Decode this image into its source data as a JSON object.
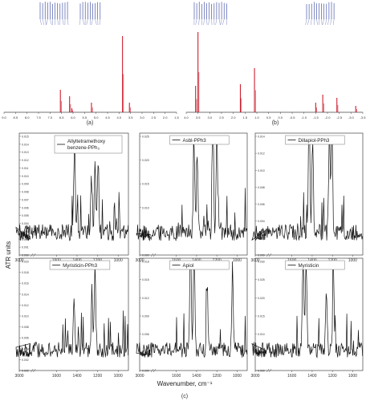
{
  "figure": {
    "panel_labels": [
      "(a)",
      "(b)",
      "(c)"
    ],
    "shared_ylabel": "ATR units",
    "shared_xlabel": "Wavenumber, cm⁻¹",
    "colors": {
      "nmr": "#cc1f2f",
      "ir": "#111111",
      "peak_labels": "#2b3d9c",
      "axis": "#444444"
    }
  },
  "chart_data": [
    {
      "id": "a",
      "type": "line",
      "title": "",
      "ticks": [
        "9.0",
        "8.5",
        "8.0",
        "7.5",
        "7.0",
        "6.5",
        "6.0",
        "5.5",
        "5.0",
        "4.5",
        "4.0",
        "3.5",
        "3.0",
        "2.5",
        "2.0",
        "1.5"
      ],
      "xlim": [
        9.0,
        1.5
      ],
      "ylim": [
        0,
        1.0
      ],
      "peaks": [
        {
          "x": 6.55,
          "y": 0.28
        },
        {
          "x": 6.15,
          "y": 0.2
        },
        {
          "x": 6.05,
          "y": 0.05
        },
        {
          "x": 5.2,
          "y": 0.12
        },
        {
          "x": 3.85,
          "y": 0.95
        },
        {
          "x": 3.55,
          "y": 0.12
        }
      ]
    },
    {
      "id": "b",
      "type": "line",
      "title": "",
      "ticks": [
        "4.0",
        "3.5",
        "3.0",
        "2.5",
        "2.0",
        "1.5",
        "1.0",
        "0.5",
        "0.0",
        "-0.5",
        "-1.0",
        "-1.5",
        "-2.0",
        "-2.5",
        "-3.0",
        "-3.5"
      ],
      "xlim": [
        4.0,
        -3.5
      ],
      "ylim": [
        0,
        1.0
      ],
      "peaks": [
        {
          "x": 3.6,
          "y": 0.33
        },
        {
          "x": 3.5,
          "y": 1.0
        },
        {
          "x": 1.7,
          "y": 0.35
        },
        {
          "x": 1.1,
          "y": 0.55
        },
        {
          "x": -1.5,
          "y": 0.12
        },
        {
          "x": -1.8,
          "y": 0.22
        },
        {
          "x": -2.4,
          "y": 0.18
        },
        {
          "x": -3.2,
          "y": 0.08
        }
      ]
    },
    {
      "id": "c1",
      "type": "line",
      "series": [
        {
          "name": "Allyltetramethoxy benzene-PPh₃"
        }
      ],
      "xticks": [
        "3000",
        "1600",
        "1400",
        "1200",
        "1000"
      ],
      "ylim": [
        0.0,
        0.015
      ],
      "yticks": [
        "0.000",
        "0.001",
        "0.002",
        "0.003",
        "0.004",
        "0.005",
        "0.006",
        "0.007",
        "0.008",
        "0.009",
        "0.010",
        "0.011",
        "0.012",
        "0.013",
        "0.014",
        "0.015"
      ],
      "peaks": [
        {
          "x": 1425,
          "y": 0.0118
        },
        {
          "x": 1260,
          "y": 0.0066
        },
        {
          "x": 1225,
          "y": 0.009
        },
        {
          "x": 1195,
          "y": 0.0095
        }
      ]
    },
    {
      "id": "c2",
      "type": "line",
      "series": [
        {
          "name": "Asbl-PPh3"
        }
      ],
      "xticks": [
        "3000",
        "1600",
        "1400",
        "1200",
        "1000"
      ],
      "ylim": [
        0.0,
        0.025
      ],
      "yticks": [
        "0.000",
        "0.005",
        "0.010",
        "0.015",
        "0.020",
        "0.025"
      ],
      "peaks": [
        {
          "x": 1425,
          "y": 0.0185
        },
        {
          "x": 1395,
          "y": 0.0175
        },
        {
          "x": 1240,
          "y": 0.0235
        },
        {
          "x": 1200,
          "y": 0.022
        }
      ]
    },
    {
      "id": "c3",
      "type": "line",
      "series": [
        {
          "name": "Dillapiol-PPh3"
        }
      ],
      "xticks": [
        "3000",
        "1600",
        "1400",
        "1200",
        "1000"
      ],
      "ylim": [
        0.0,
        0.014
      ],
      "yticks": [
        "0.000",
        "0.002",
        "0.004",
        "0.006",
        "0.008",
        "0.010",
        "0.012",
        "0.014"
      ],
      "peaks": [
        {
          "x": 1430,
          "y": 0.0115
        },
        {
          "x": 1395,
          "y": 0.0113
        },
        {
          "x": 1230,
          "y": 0.0125
        },
        {
          "x": 1205,
          "y": 0.0135
        }
      ]
    },
    {
      "id": "c4",
      "type": "line",
      "series": [
        {
          "name": "Myristicin-PPh3"
        }
      ],
      "xticks": [
        "3000",
        "1600",
        "1400",
        "1200",
        "1000"
      ],
      "ylim": [
        0.0,
        0.02
      ],
      "yticks": [
        "0.000",
        "0.002",
        "0.004",
        "0.006",
        "0.008",
        "0.010",
        "0.012",
        "0.014",
        "0.016",
        "0.018",
        "0.020"
      ],
      "peaks": [
        {
          "x": 1430,
          "y": 0.0105
        },
        {
          "x": 1255,
          "y": 0.011
        },
        {
          "x": 1225,
          "y": 0.0155
        }
      ]
    },
    {
      "id": "c5",
      "type": "line",
      "series": [
        {
          "name": "Apiol"
        }
      ],
      "xticks": [
        "3000",
        "1600",
        "1400",
        "1200",
        "1000"
      ],
      "ylim": [
        0.0,
        0.018
      ],
      "yticks": [
        "0.000",
        "0.003",
        "0.006",
        "0.009",
        "0.012",
        "0.015",
        "0.018"
      ],
      "peaks": [
        {
          "x": 1460,
          "y": 0.0175
        },
        {
          "x": 1425,
          "y": 0.018
        },
        {
          "x": 1295,
          "y": 0.0115
        },
        {
          "x": 1045,
          "y": 0.0145
        }
      ]
    },
    {
      "id": "c6",
      "type": "line",
      "series": [
        {
          "name": "Myristicin"
        }
      ],
      "xticks": [
        "3000",
        "1600",
        "1400",
        "1200",
        "1000"
      ],
      "ylim": [
        0.0,
        0.03
      ],
      "yticks": [
        "0.000",
        "0.005",
        "0.010",
        "0.015",
        "0.020",
        "0.025",
        "0.030"
      ],
      "peaks": [
        {
          "x": 1490,
          "y": 0.029
        },
        {
          "x": 1460,
          "y": 0.027
        },
        {
          "x": 1260,
          "y": 0.016
        },
        {
          "x": 1190,
          "y": 0.024
        }
      ]
    }
  ]
}
